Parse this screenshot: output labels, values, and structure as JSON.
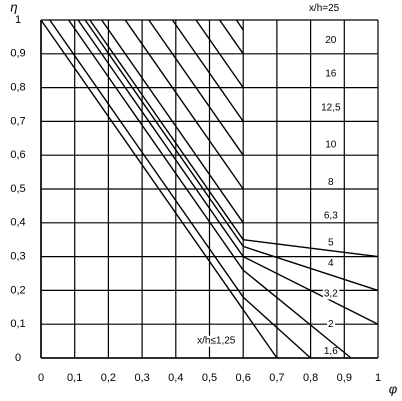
{
  "chart_data": {
    "type": "line",
    "xlabel": "φ",
    "ylabel": "η",
    "xlim": [
      0,
      1
    ],
    "ylim": [
      0,
      1
    ],
    "xticks": [
      0,
      {
        "value": 0.1,
        "label": "0,1"
      },
      {
        "value": 0.2,
        "label": "0,2"
      },
      {
        "value": 0.3,
        "label": "0,3"
      },
      {
        "value": 0.4,
        "label": "0,4"
      },
      {
        "value": 0.5,
        "label": "0,5"
      },
      {
        "value": 0.6,
        "label": "0,6"
      },
      {
        "value": 0.7,
        "label": "0,7"
      },
      {
        "value": 0.8,
        "label": "0,8"
      },
      {
        "value": 0.9,
        "label": "0,9"
      },
      1
    ],
    "yticks": [
      0,
      {
        "value": 0.1,
        "label": "0,1"
      },
      {
        "value": 0.2,
        "label": "0,2"
      },
      {
        "value": 0.3,
        "label": "0,3"
      },
      {
        "value": 0.4,
        "label": "0,4"
      },
      {
        "value": 0.5,
        "label": "0,5"
      },
      {
        "value": 0.6,
        "label": "0,6"
      },
      {
        "value": 0.7,
        "label": "0,7"
      },
      {
        "value": 0.8,
        "label": "0,8"
      },
      {
        "value": 0.9,
        "label": "0,9"
      },
      1
    ],
    "grid": true,
    "series": [
      {
        "name": "x/h≤1,25",
        "color": "#000000",
        "x": [
          0,
          0.7
        ],
        "values": [
          1,
          0
        ]
      },
      {
        "name": "1,6",
        "color": "#000000",
        "x": [
          0.026,
          0.6,
          0.8
        ],
        "values": [
          1,
          0.18,
          0
        ]
      },
      {
        "name": "2",
        "color": "#000000",
        "x": [
          0.082,
          0.6,
          0.92
        ],
        "values": [
          1,
          0.26,
          0
        ]
      },
      {
        "name": "3,2",
        "color": "#000000",
        "x": [
          0.11,
          0.6,
          1
        ],
        "values": [
          1,
          0.3,
          0.1
        ]
      },
      {
        "name": "4",
        "color": "#000000",
        "x": [
          0.131,
          0.6,
          1
        ],
        "values": [
          1,
          0.33,
          0.2
        ]
      },
      {
        "name": "5",
        "color": "#000000",
        "x": [
          0.145,
          0.6,
          1
        ],
        "values": [
          1,
          0.35,
          0.3
        ]
      },
      {
        "name": "6,3",
        "color": "#000000",
        "x": [
          0.18,
          0.6
        ],
        "values": [
          1,
          0.4
        ]
      },
      {
        "name": "8",
        "color": "#000000",
        "x": [
          0.25,
          0.6
        ],
        "values": [
          1,
          0.5
        ]
      },
      {
        "name": "10",
        "color": "#000000",
        "x": [
          0.32,
          0.6
        ],
        "values": [
          1,
          0.6
        ]
      },
      {
        "name": "12,5",
        "color": "#000000",
        "x": [
          0.39,
          0.6
        ],
        "values": [
          1,
          0.7
        ]
      },
      {
        "name": "16",
        "color": "#000000",
        "x": [
          0.46,
          0.6
        ],
        "values": [
          1,
          0.8
        ]
      },
      {
        "name": "20",
        "color": "#000000",
        "x": [
          0.53,
          0.6
        ],
        "values": [
          1,
          0.9
        ]
      },
      {
        "name": "x/h=25",
        "color": "#000000",
        "x": [
          0.58,
          0.6
        ],
        "values": [
          1,
          0.97
        ]
      }
    ]
  }
}
